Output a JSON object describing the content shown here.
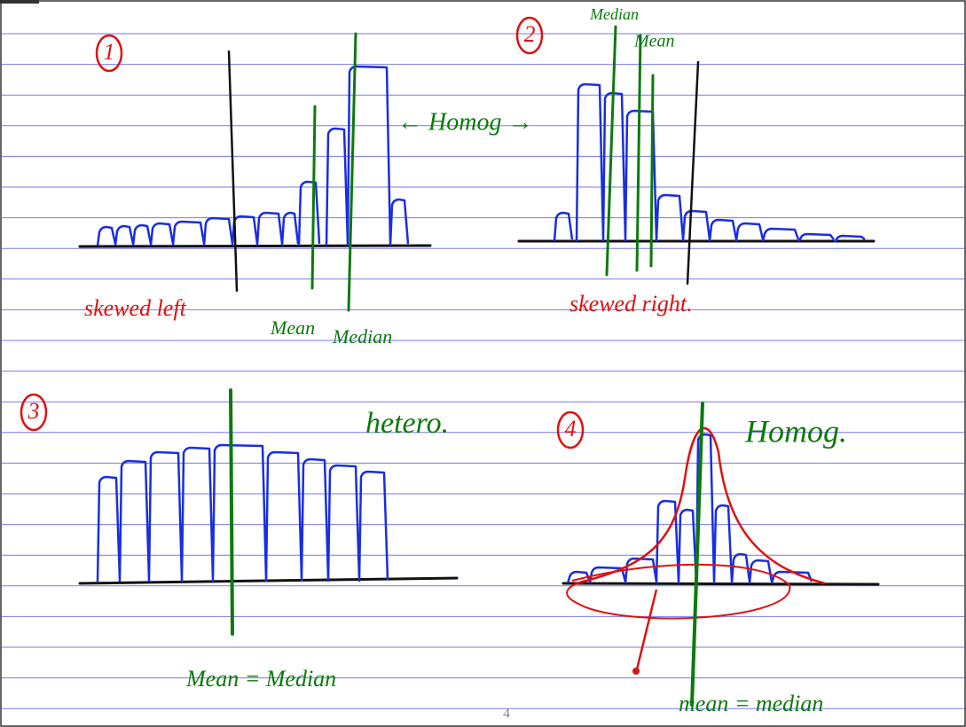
{
  "panels": [
    {
      "number": "1",
      "caption": "skewed left",
      "labels": [
        "Mean",
        "Median"
      ],
      "note": "← Homog →"
    },
    {
      "number": "2",
      "caption": "skewed right.",
      "labels": [
        "Median",
        "Mean"
      ]
    },
    {
      "number": "3",
      "caption": "Mean = Median",
      "note": "hetero."
    },
    {
      "number": "4",
      "caption": "mean = median",
      "note": "Homog."
    }
  ],
  "page_number": "4"
}
